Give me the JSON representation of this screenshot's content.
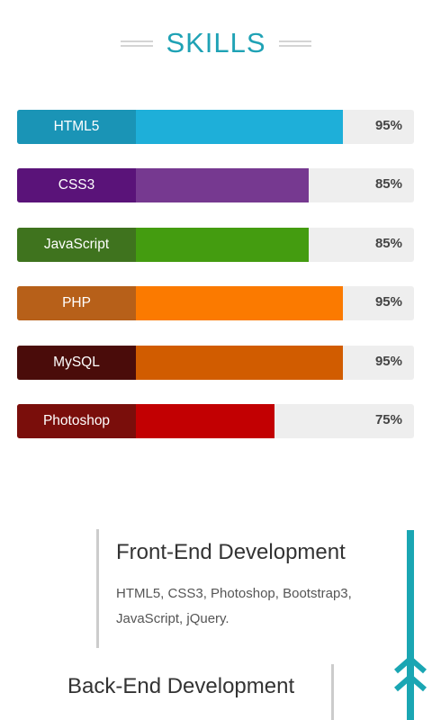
{
  "header": {
    "title": "SKILLS"
  },
  "skills": [
    {
      "name": "HTML5",
      "percent": "95%",
      "level": 0.95,
      "label_color": "#1a94b6",
      "bar_color": "#1eafd9"
    },
    {
      "name": "CSS3",
      "percent": "85%",
      "level": 0.85,
      "label_color": "#5a1379",
      "bar_color": "#763990"
    },
    {
      "name": "JavaScript",
      "percent": "85%",
      "level": 0.85,
      "label_color": "#3f731e",
      "bar_color": "#449c10"
    },
    {
      "name": "PHP",
      "percent": "95%",
      "level": 0.95,
      "label_color": "#b76019",
      "bar_color": "#fb7a00"
    },
    {
      "name": "MySQL",
      "percent": "95%",
      "level": 0.95,
      "label_color": "#4a0c0a",
      "bar_color": "#d15c00"
    },
    {
      "name": "Photoshop",
      "percent": "75%",
      "level": 0.75,
      "label_color": "#7a0e0b",
      "bar_color": "#c20002"
    }
  ],
  "timeline": {
    "items": [
      {
        "title": "Front-End Development",
        "description": "HTML5, CSS3, Photoshop, Bootstrap3, JavaScript, jQuery."
      },
      {
        "title": "Back-End Development"
      }
    ],
    "accent_color": "#1aa6b3",
    "icon": "double-chevron-up-icon"
  }
}
